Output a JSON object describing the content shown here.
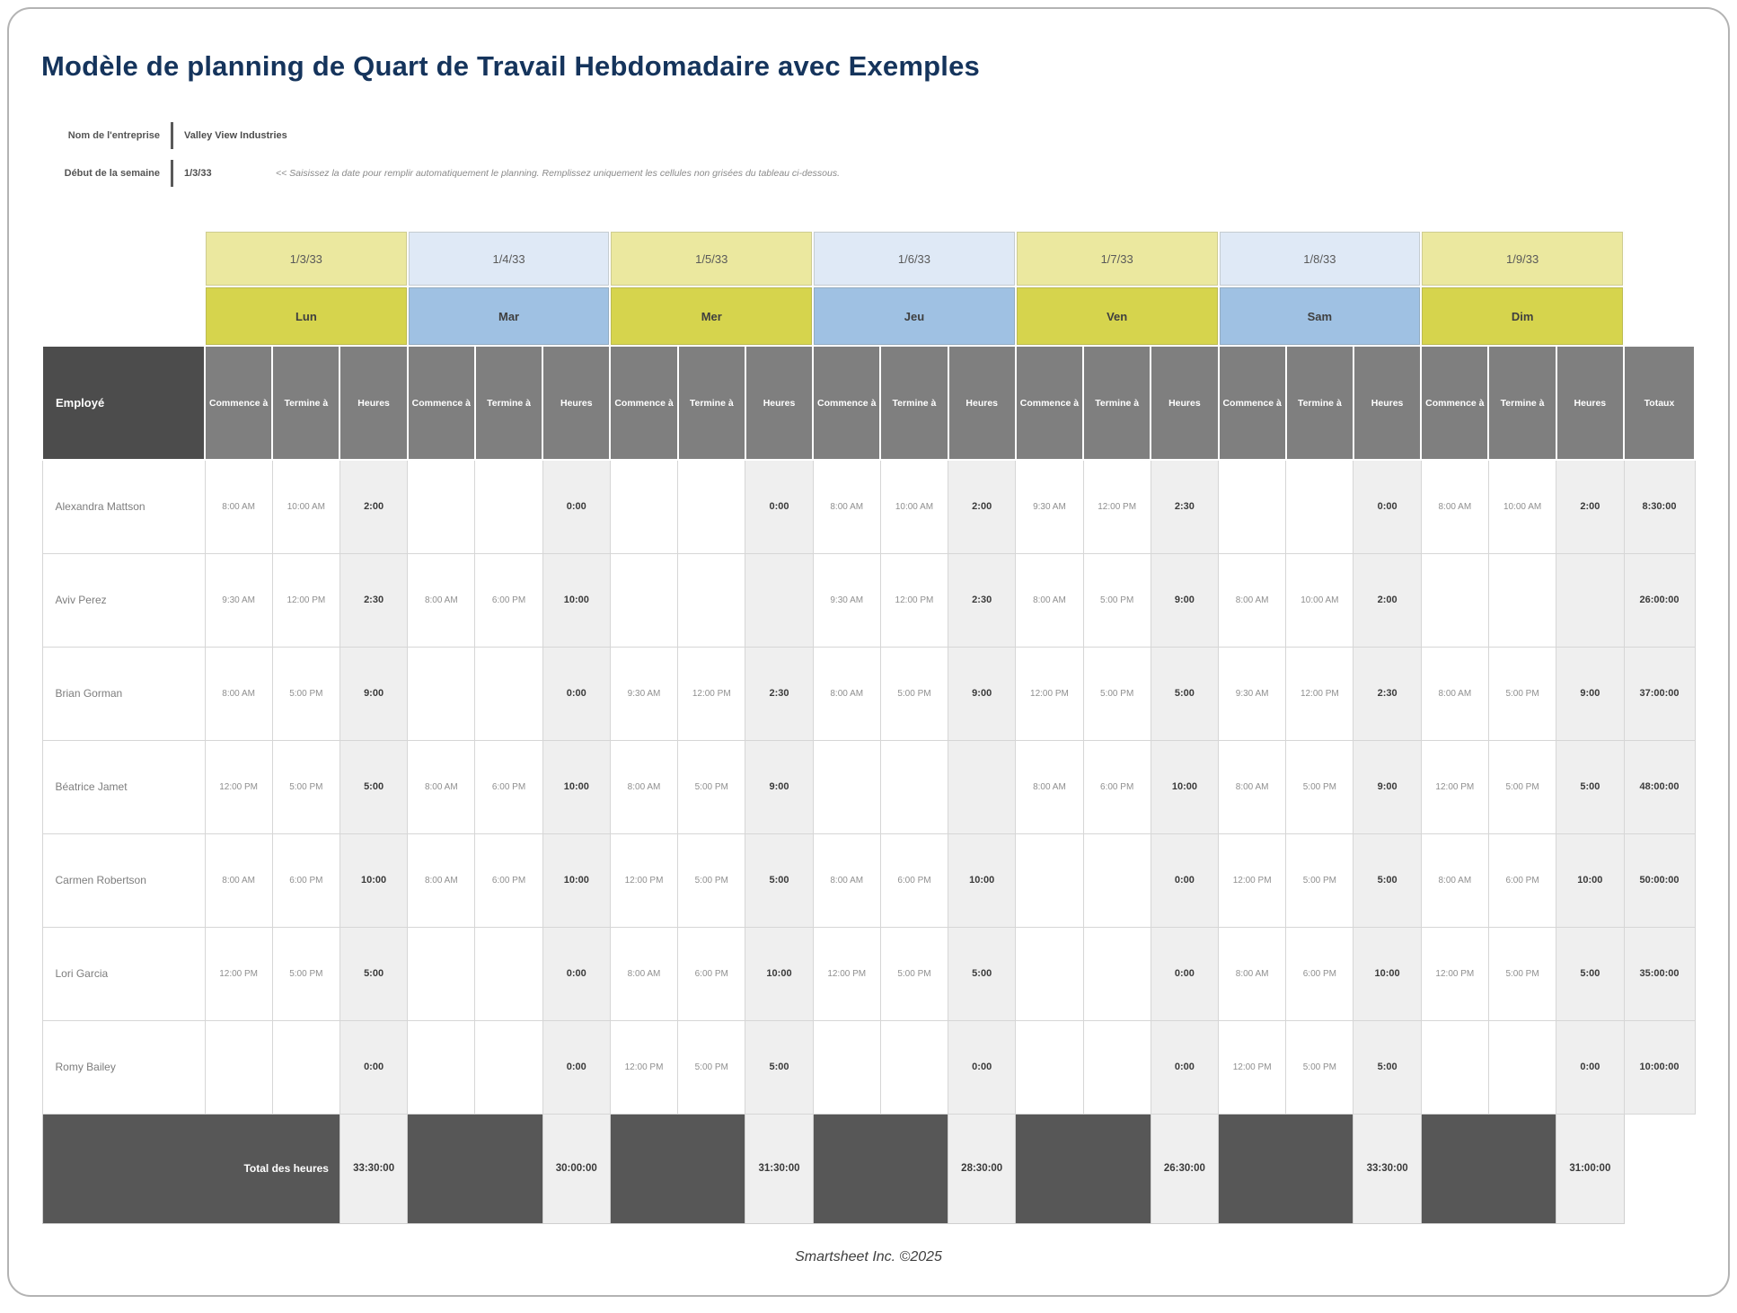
{
  "page": {
    "title": "Modèle de planning de Quart de Travail Hebdomadaire avec Exemples",
    "footer": "Smartsheet Inc. ©2025"
  },
  "meta": {
    "company_label": "Nom de l'entreprise",
    "company_value": "Valley View Industries",
    "week_label": "Début de la semaine",
    "week_value": "1/3/33",
    "week_note": "<< Saisissez la date pour remplir automatiquement le planning. Remplissez uniquement les cellules non grisées du tableau ci-dessous."
  },
  "colors": {
    "title_navy": "#15345c",
    "date_yellow": "#ebe89f",
    "date_blue": "#dfe9f6",
    "day_yellow": "#d6d44d",
    "day_blue": "#9fc1e3",
    "header_dark": "#4c4c4c",
    "header_gray": "#7f7f7f",
    "hours_shade": "#efefef",
    "total_row_dark": "#575757"
  },
  "table": {
    "employee_header": "Employé",
    "totals_header": "Totaux",
    "sub_headers": [
      "Commence à",
      "Termine à",
      "Heures"
    ],
    "days": [
      {
        "date": "1/3/33",
        "name": "Lun",
        "tone": "yellow"
      },
      {
        "date": "1/4/33",
        "name": "Mar",
        "tone": "blue"
      },
      {
        "date": "1/5/33",
        "name": "Mer",
        "tone": "yellow"
      },
      {
        "date": "1/6/33",
        "name": "Jeu",
        "tone": "blue"
      },
      {
        "date": "1/7/33",
        "name": "Ven",
        "tone": "yellow"
      },
      {
        "date": "1/8/33",
        "name": "Sam",
        "tone": "blue"
      },
      {
        "date": "1/9/33",
        "name": "Dim",
        "tone": "yellow"
      }
    ],
    "rows": [
      {
        "employee": "Alexandra Mattson",
        "shifts": [
          {
            "start": "8:00 AM",
            "end": "10:00 AM",
            "hours": "2:00"
          },
          {
            "start": "",
            "end": "",
            "hours": "0:00"
          },
          {
            "start": "",
            "end": "",
            "hours": "0:00"
          },
          {
            "start": "8:00 AM",
            "end": "10:00 AM",
            "hours": "2:00"
          },
          {
            "start": "9:30 AM",
            "end": "12:00 PM",
            "hours": "2:30"
          },
          {
            "start": "",
            "end": "",
            "hours": "0:00"
          },
          {
            "start": "8:00 AM",
            "end": "10:00 AM",
            "hours": "2:00"
          }
        ],
        "total": "8:30:00"
      },
      {
        "employee": "Aviv Perez",
        "shifts": [
          {
            "start": "9:30 AM",
            "end": "12:00 PM",
            "hours": "2:30"
          },
          {
            "start": "8:00 AM",
            "end": "6:00 PM",
            "hours": "10:00"
          },
          {
            "start": "",
            "end": "",
            "hours": ""
          },
          {
            "start": "9:30 AM",
            "end": "12:00 PM",
            "hours": "2:30"
          },
          {
            "start": "8:00 AM",
            "end": "5:00 PM",
            "hours": "9:00"
          },
          {
            "start": "8:00 AM",
            "end": "10:00 AM",
            "hours": "2:00"
          },
          {
            "start": "",
            "end": "",
            "hours": ""
          }
        ],
        "total": "26:00:00"
      },
      {
        "employee": "Brian Gorman",
        "shifts": [
          {
            "start": "8:00 AM",
            "end": "5:00 PM",
            "hours": "9:00"
          },
          {
            "start": "",
            "end": "",
            "hours": "0:00"
          },
          {
            "start": "9:30 AM",
            "end": "12:00 PM",
            "hours": "2:30"
          },
          {
            "start": "8:00 AM",
            "end": "5:00 PM",
            "hours": "9:00"
          },
          {
            "start": "12:00 PM",
            "end": "5:00 PM",
            "hours": "5:00"
          },
          {
            "start": "9:30 AM",
            "end": "12:00 PM",
            "hours": "2:30"
          },
          {
            "start": "8:00 AM",
            "end": "5:00 PM",
            "hours": "9:00"
          }
        ],
        "total": "37:00:00"
      },
      {
        "employee": "Béatrice Jamet",
        "shifts": [
          {
            "start": "12:00 PM",
            "end": "5:00 PM",
            "hours": "5:00"
          },
          {
            "start": "8:00 AM",
            "end": "6:00 PM",
            "hours": "10:00"
          },
          {
            "start": "8:00 AM",
            "end": "5:00 PM",
            "hours": "9:00"
          },
          {
            "start": "",
            "end": "",
            "hours": ""
          },
          {
            "start": "8:00 AM",
            "end": "6:00 PM",
            "hours": "10:00"
          },
          {
            "start": "8:00 AM",
            "end": "5:00 PM",
            "hours": "9:00"
          },
          {
            "start": "12:00 PM",
            "end": "5:00 PM",
            "hours": "5:00"
          }
        ],
        "total": "48:00:00"
      },
      {
        "employee": "Carmen Robertson",
        "shifts": [
          {
            "start": "8:00 AM",
            "end": "6:00 PM",
            "hours": "10:00"
          },
          {
            "start": "8:00 AM",
            "end": "6:00 PM",
            "hours": "10:00"
          },
          {
            "start": "12:00 PM",
            "end": "5:00 PM",
            "hours": "5:00"
          },
          {
            "start": "8:00 AM",
            "end": "6:00 PM",
            "hours": "10:00"
          },
          {
            "start": "",
            "end": "",
            "hours": "0:00"
          },
          {
            "start": "12:00 PM",
            "end": "5:00 PM",
            "hours": "5:00"
          },
          {
            "start": "8:00 AM",
            "end": "6:00 PM",
            "hours": "10:00"
          }
        ],
        "total": "50:00:00"
      },
      {
        "employee": "Lori Garcia",
        "shifts": [
          {
            "start": "12:00 PM",
            "end": "5:00 PM",
            "hours": "5:00"
          },
          {
            "start": "",
            "end": "",
            "hours": "0:00"
          },
          {
            "start": "8:00 AM",
            "end": "6:00 PM",
            "hours": "10:00"
          },
          {
            "start": "12:00 PM",
            "end": "5:00 PM",
            "hours": "5:00"
          },
          {
            "start": "",
            "end": "",
            "hours": "0:00"
          },
          {
            "start": "8:00 AM",
            "end": "6:00 PM",
            "hours": "10:00"
          },
          {
            "start": "12:00 PM",
            "end": "5:00 PM",
            "hours": "5:00"
          }
        ],
        "total": "35:00:00"
      },
      {
        "employee": "Romy Bailey",
        "shifts": [
          {
            "start": "",
            "end": "",
            "hours": "0:00"
          },
          {
            "start": "",
            "end": "",
            "hours": "0:00"
          },
          {
            "start": "12:00 PM",
            "end": "5:00 PM",
            "hours": "5:00"
          },
          {
            "start": "",
            "end": "",
            "hours": "0:00"
          },
          {
            "start": "",
            "end": "",
            "hours": "0:00"
          },
          {
            "start": "12:00 PM",
            "end": "5:00 PM",
            "hours": "5:00"
          },
          {
            "start": "",
            "end": "",
            "hours": "0:00"
          }
        ],
        "total": "10:00:00"
      }
    ],
    "total_row": {
      "label": "Total des heures",
      "values": [
        "33:30:00",
        "30:00:00",
        "31:30:00",
        "28:30:00",
        "26:30:00",
        "33:30:00",
        "31:00:00"
      ]
    }
  }
}
